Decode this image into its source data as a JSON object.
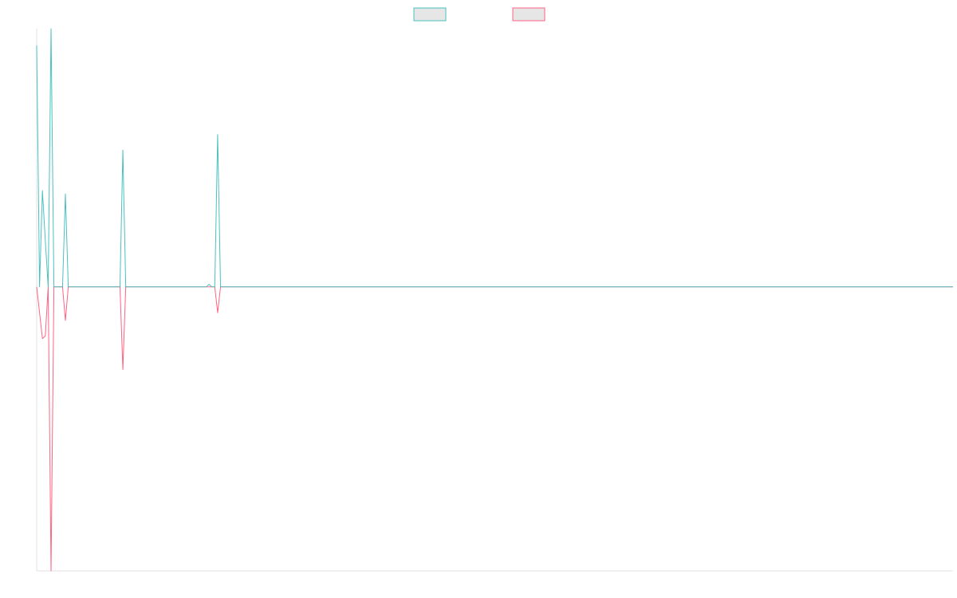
{
  "chart_data": {
    "type": "line",
    "ylim": [
      -1.1,
      1
    ],
    "series": [
      {
        "color": "#4bc0c0",
        "values": [
          0.935,
          0,
          0.373,
          0.18,
          0,
          1,
          0,
          0,
          0,
          0,
          0.36,
          0,
          0,
          0,
          0,
          0,
          0,
          0,
          0,
          0,
          0,
          0,
          0,
          0,
          0,
          0,
          0,
          0,
          0,
          0,
          0.53,
          0,
          0,
          0,
          0,
          0,
          0,
          0,
          0,
          0,
          0,
          0,
          0,
          0,
          0,
          0,
          0,
          0,
          0,
          0,
          0,
          0,
          0,
          0,
          0,
          0,
          0,
          0,
          0,
          0,
          0.01,
          0,
          0,
          0.59,
          0,
          0,
          0,
          0,
          0,
          0,
          0,
          0,
          0,
          0,
          0,
          0,
          0,
          0,
          0,
          0,
          0,
          0,
          0,
          0,
          0,
          0,
          0,
          0,
          0,
          0,
          0,
          0,
          0,
          0,
          0,
          0,
          0,
          0,
          0,
          0,
          0,
          0,
          0,
          0,
          0,
          0,
          0,
          0,
          0,
          0,
          0,
          0,
          0,
          0,
          0,
          0,
          0,
          0,
          0,
          0,
          0,
          0,
          0,
          0,
          0,
          0,
          0,
          0,
          0,
          0,
          0,
          0,
          0,
          0,
          0,
          0,
          0,
          0,
          0,
          0,
          0,
          0,
          0,
          0,
          0,
          0,
          0,
          0,
          0,
          0,
          0,
          0,
          0,
          0,
          0,
          0,
          0,
          0,
          0,
          0,
          0,
          0,
          0,
          0,
          0,
          0,
          0,
          0,
          0,
          0,
          0,
          0,
          0,
          0,
          0,
          0,
          0,
          0,
          0,
          0,
          0,
          0,
          0,
          0,
          0,
          0,
          0,
          0,
          0,
          0,
          0,
          0,
          0,
          0,
          0,
          0,
          0,
          0,
          0,
          0,
          0,
          0,
          0,
          0,
          0,
          0,
          0,
          0,
          0,
          0,
          0,
          0,
          0,
          0,
          0,
          0,
          0,
          0,
          0,
          0,
          0,
          0,
          0,
          0,
          0,
          0,
          0,
          0,
          0,
          0,
          0,
          0,
          0,
          0,
          0,
          0,
          0,
          0,
          0,
          0,
          0,
          0,
          0,
          0,
          0,
          0,
          0,
          0,
          0,
          0,
          0,
          0,
          0,
          0,
          0,
          0,
          0,
          0,
          0,
          0,
          0,
          0,
          0,
          0,
          0,
          0,
          0,
          0,
          0,
          0,
          0,
          0,
          0,
          0,
          0,
          0,
          0,
          0,
          0,
          0,
          0,
          0,
          0,
          0,
          0,
          0,
          0,
          0,
          0,
          0,
          0,
          0,
          0,
          0,
          0,
          0,
          0,
          0,
          0,
          0,
          0,
          0,
          0,
          0,
          0,
          0,
          0,
          0,
          0,
          0,
          0,
          0,
          0,
          0,
          0,
          0,
          0,
          0,
          0,
          0
        ]
      },
      {
        "color": "#ff6384",
        "values": [
          0,
          -0.1,
          -0.2,
          -0.19,
          0,
          -1.1,
          0,
          0,
          0,
          0,
          -0.13,
          0,
          0,
          0,
          0,
          0,
          0,
          0,
          0,
          0,
          0,
          0,
          0,
          0,
          0,
          0,
          0,
          0,
          0,
          0,
          -0.32,
          0,
          0,
          0,
          0,
          0,
          0,
          0,
          0,
          0,
          0,
          0,
          0,
          0,
          0,
          0,
          0,
          0,
          0,
          0,
          0,
          0,
          0,
          0,
          0,
          0,
          0,
          0,
          0,
          0,
          0,
          0,
          0,
          -0.1,
          0,
          0,
          0,
          0,
          0,
          0,
          0,
          0,
          0,
          0,
          0,
          0,
          0,
          0,
          0,
          0,
          0,
          0,
          0,
          0,
          0,
          0,
          0,
          0,
          0,
          0,
          0,
          0,
          0,
          0,
          0,
          0,
          0,
          0,
          0,
          0,
          0,
          0,
          0,
          0,
          0,
          0,
          0,
          0,
          0,
          0,
          0,
          0,
          0,
          0,
          0,
          0,
          0,
          0,
          0,
          0,
          0,
          0,
          0,
          0,
          0,
          0,
          0,
          0,
          0,
          0,
          0,
          0,
          0,
          0,
          0,
          0,
          0,
          0,
          0,
          0,
          0,
          0,
          0,
          0,
          0,
          0,
          0,
          0,
          0,
          0,
          0,
          0,
          0,
          0,
          0,
          0,
          0,
          0,
          0,
          0,
          0,
          0,
          0,
          0,
          0,
          0,
          0,
          0,
          0,
          0,
          0,
          0,
          0,
          0,
          0,
          0,
          0,
          0,
          0,
          0,
          0,
          0,
          0,
          0,
          0,
          0,
          0,
          0,
          0,
          0,
          0,
          0,
          0,
          0,
          0,
          0,
          0,
          0,
          0,
          0,
          0,
          0,
          0,
          0,
          0,
          0,
          0,
          0,
          0,
          0,
          0,
          0,
          0,
          0,
          0,
          0,
          0,
          0,
          0,
          0,
          0,
          0,
          0,
          0,
          0,
          0,
          0,
          0,
          0,
          0,
          0,
          0,
          0,
          0,
          0,
          0,
          0,
          0,
          0,
          0,
          0,
          0,
          0,
          0,
          0,
          0,
          0,
          0,
          0,
          0,
          0,
          0,
          0,
          0,
          0,
          0,
          0,
          0,
          0,
          0,
          0,
          0,
          0,
          0,
          0,
          0,
          0,
          0,
          0,
          0,
          0,
          0,
          0,
          0,
          0,
          0,
          0,
          0,
          0,
          0,
          0,
          0,
          0,
          0,
          0,
          0,
          0,
          0,
          0,
          0,
          0,
          0,
          0,
          0,
          0,
          0,
          0,
          0,
          0,
          0,
          0,
          0,
          0,
          0,
          0,
          0,
          0,
          0,
          0,
          0,
          0,
          0,
          0,
          0,
          0,
          0,
          0,
          0,
          0,
          0
        ]
      }
    ]
  }
}
